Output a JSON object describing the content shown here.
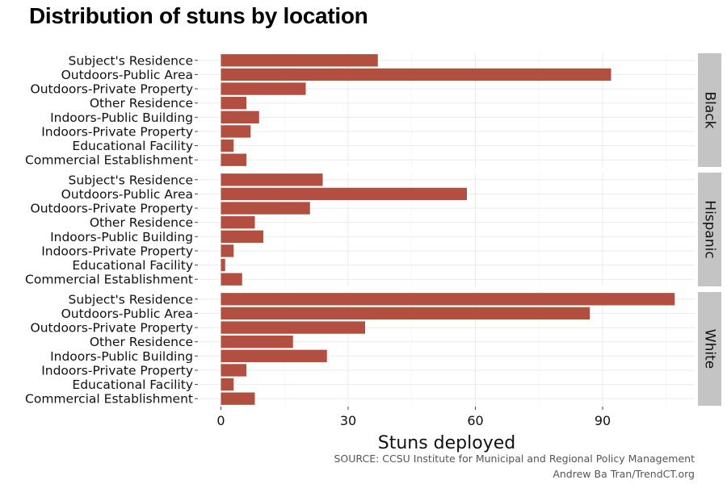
{
  "chart_data": {
    "type": "bar",
    "orientation": "horizontal",
    "title": "Distribution of stuns by location",
    "xlabel": "Stuns deployed",
    "ylabel": "",
    "xlim": [
      0,
      110
    ],
    "x_ticks": [
      0,
      30,
      60,
      90
    ],
    "grid": true,
    "categories": [
      "Subject's Residence",
      "Outdoors-Public Area",
      "Outdoors-Private Property",
      "Other Residence",
      "Indoors-Public Building",
      "Indoors-Private Property",
      "Educational Facility",
      "Commercial Establishment"
    ],
    "panels": [
      {
        "name": "Black",
        "values": [
          37,
          92,
          20,
          6,
          9,
          7,
          3,
          6
        ]
      },
      {
        "name": "Hispanic",
        "values": [
          24,
          58,
          21,
          8,
          10,
          3,
          1,
          5
        ]
      },
      {
        "name": "White",
        "values": [
          107,
          87,
          34,
          17,
          25,
          6,
          3,
          8
        ]
      }
    ],
    "bar_color": "#b34f41"
  },
  "source_line1": "SOURCE: CCSU Institute for Municipal and Regional Policy Management",
  "source_line2": "Andrew Ba Tran/TrendCT.org"
}
